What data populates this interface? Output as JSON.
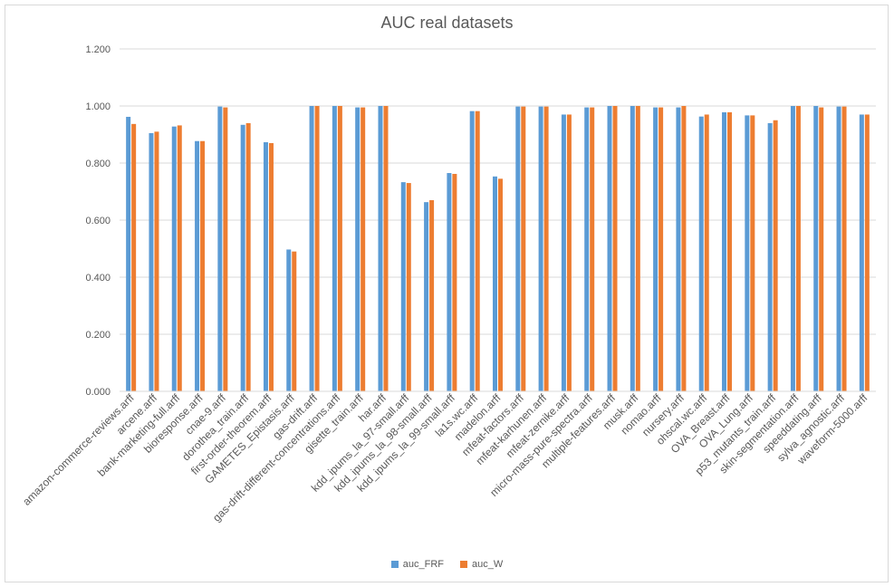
{
  "chart_data": {
    "type": "bar",
    "title": "AUC real datasets",
    "ylim": [
      0,
      1.2
    ],
    "yticks": [
      "0.000",
      "0.200",
      "0.400",
      "0.600",
      "0.800",
      "1.000",
      "1.200"
    ],
    "grid": true,
    "legend_position": "bottom",
    "categories": [
      "amazon-commerce-reviews.arff",
      "arcene.arff",
      "bank-marketing-full.arff",
      "bioresponse.arff",
      "cnae-9.arff",
      "dorothea_train.arff",
      "first-order-theorem.arff",
      "GAMETES_Epistasis.arff",
      "gas-drift.arff",
      "gas-drift-different-concentrations.arff",
      "gisette_train.arff",
      "har.arff",
      "kdd_ipums_la_97-small.arff",
      "kdd_ipums_la_98-small.arff",
      "kdd_ipums_la_99-small.arff",
      "la1s.wc.arff",
      "madelon.arff",
      "mfeat-factors.arff",
      "mfeat-karhunen.arff",
      "mfeat-zernike.arff",
      "micro-mass-pure-spectra.arff",
      "multiple-features.arff",
      "musk.arff",
      "nomao.arff",
      "nursery.arff",
      "ohscal.wc.arff",
      "OVA_Breast.arff",
      "OVA_Lung.arff",
      "p53_mutants_train.arff",
      "skin-segmentation.arff",
      "speeddating.arff",
      "sylva_agnostic.arff",
      "waveform-5000.arff"
    ],
    "series": [
      {
        "name": "auc_FRF",
        "color": "#5b9bd5",
        "values": [
          0.962,
          0.905,
          0.928,
          0.877,
          0.998,
          0.934,
          0.873,
          0.497,
          1.0,
          1.0,
          0.995,
          1.0,
          0.733,
          0.663,
          0.765,
          0.982,
          0.753,
          0.998,
          0.998,
          0.97,
          0.995,
          1.0,
          1.0,
          0.995,
          0.995,
          0.963,
          0.978,
          0.967,
          0.94,
          1.0,
          1.0,
          0.998,
          0.97
        ]
      },
      {
        "name": "auc_W",
        "color": "#ed7d31",
        "values": [
          0.937,
          0.91,
          0.932,
          0.877,
          0.995,
          0.94,
          0.87,
          0.49,
          1.0,
          1.0,
          0.995,
          1.0,
          0.73,
          0.67,
          0.762,
          0.982,
          0.745,
          0.998,
          0.998,
          0.97,
          0.995,
          1.0,
          1.0,
          0.995,
          1.0,
          0.97,
          0.978,
          0.967,
          0.95,
          1.0,
          0.995,
          0.998,
          0.97
        ]
      }
    ]
  }
}
